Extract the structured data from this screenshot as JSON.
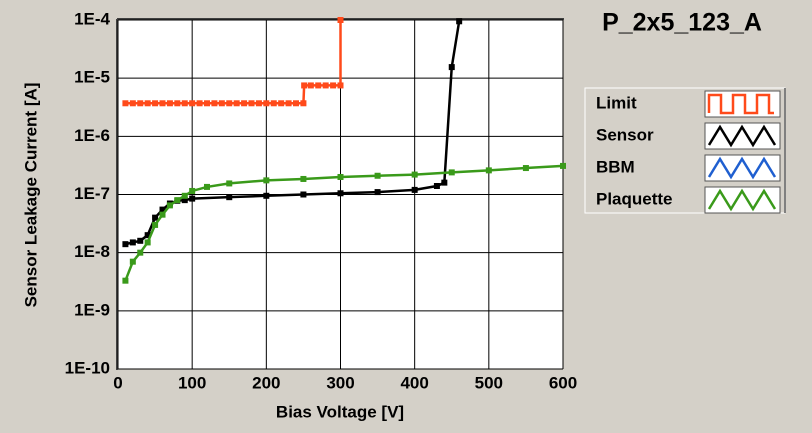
{
  "chart_data": {
    "type": "line",
    "title": "P_2x5_123_A",
    "xlabel": "Bias Voltage [V]",
    "ylabel": "Sensor Leakage Current [A]",
    "xlim": [
      0,
      600
    ],
    "ylim": [
      1e-10,
      0.0001
    ],
    "xticks": [
      0,
      100,
      200,
      300,
      400,
      500,
      600
    ],
    "yticks": [
      {
        "value": 1e-10,
        "label": "1E-10"
      },
      {
        "value": 1e-09,
        "label": "1E-9"
      },
      {
        "value": 1e-08,
        "label": "1E-8"
      },
      {
        "value": 1e-07,
        "label": "1E-7"
      },
      {
        "value": 1e-06,
        "label": "1E-6"
      },
      {
        "value": 1e-05,
        "label": "1E-5"
      },
      {
        "value": 0.0001,
        "label": "1E-4"
      }
    ],
    "log_y": true,
    "grid": true,
    "legend": "right",
    "series": [
      {
        "name": "Limit",
        "color": "#ff4a1a",
        "x": [
          10,
          20,
          30,
          40,
          50,
          60,
          70,
          80,
          90,
          100,
          110,
          120,
          130,
          140,
          150,
          160,
          170,
          180,
          190,
          200,
          210,
          220,
          230,
          240,
          250,
          251,
          260,
          270,
          280,
          290,
          300,
          300
        ],
        "values": [
          3.7e-06,
          3.7e-06,
          3.7e-06,
          3.7e-06,
          3.7e-06,
          3.7e-06,
          3.7e-06,
          3.7e-06,
          3.7e-06,
          3.7e-06,
          3.7e-06,
          3.7e-06,
          3.7e-06,
          3.7e-06,
          3.7e-06,
          3.7e-06,
          3.7e-06,
          3.7e-06,
          3.7e-06,
          3.7e-06,
          3.7e-06,
          3.7e-06,
          3.7e-06,
          3.7e-06,
          3.7e-06,
          7.5e-06,
          7.5e-06,
          7.5e-06,
          7.5e-06,
          7.5e-06,
          7.5e-06,
          0.0001
        ]
      },
      {
        "name": "Sensor",
        "color": "#000000",
        "x": [
          10,
          20,
          30,
          40,
          50,
          60,
          70,
          80,
          90,
          100,
          150,
          200,
          250,
          300,
          350,
          400,
          430,
          440,
          450,
          460
        ],
        "values": [
          1.4e-08,
          1.5e-08,
          1.6e-08,
          2e-08,
          4e-08,
          5.5e-08,
          7e-08,
          7.8e-08,
          8e-08,
          8.5e-08,
          9e-08,
          9.5e-08,
          1e-07,
          1.05e-07,
          1.1e-07,
          1.2e-07,
          1.4e-07,
          1.6e-07,
          1.55e-05,
          9.5e-05
        ]
      },
      {
        "name": "BBM",
        "color": "#1f5fd0",
        "x": [],
        "values": []
      },
      {
        "name": "Plaquette",
        "color": "#3a9a1a",
        "x": [
          10,
          20,
          30,
          40,
          50,
          60,
          70,
          80,
          90,
          100,
          120,
          150,
          200,
          250,
          300,
          350,
          400,
          450,
          500,
          550,
          600
        ],
        "values": [
          3.3e-09,
          7e-09,
          1e-08,
          1.5e-08,
          3e-08,
          4.5e-08,
          6.5e-08,
          8e-08,
          9.5e-08,
          1.15e-07,
          1.35e-07,
          1.55e-07,
          1.75e-07,
          1.85e-07,
          2e-07,
          2.1e-07,
          2.2e-07,
          2.4e-07,
          2.6e-07,
          2.85e-07,
          3.1e-07
        ]
      }
    ]
  }
}
